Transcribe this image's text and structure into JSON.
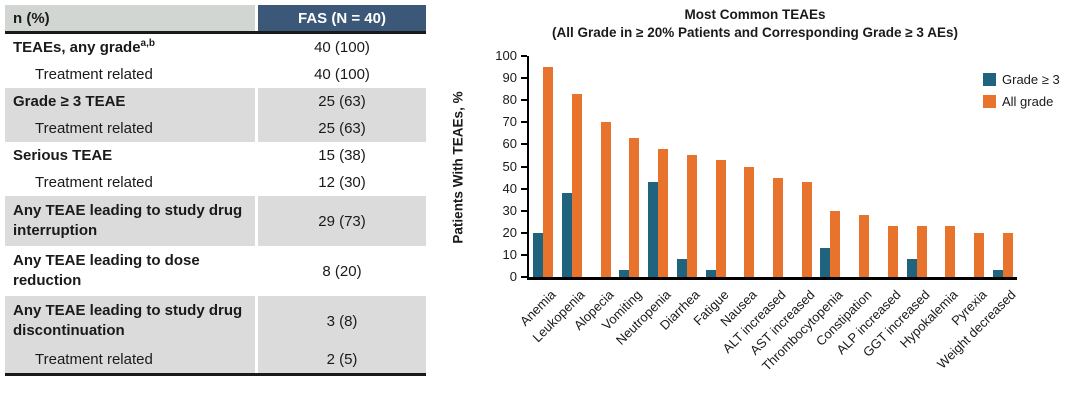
{
  "table": {
    "header": {
      "col1": "n (%)",
      "col2": "FAS (N = 40)"
    },
    "rows": [
      {
        "label": "TEAEs, any grade",
        "sup": "a,b",
        "value": "40 (100)",
        "bold": true,
        "indent": false,
        "shaded": false,
        "twoline": false
      },
      {
        "label": "Treatment related",
        "sup": "",
        "value": "40 (100)",
        "bold": false,
        "indent": true,
        "shaded": false,
        "twoline": false
      },
      {
        "label": "Grade ≥ 3 TEAE",
        "sup": "",
        "value": "25 (63)",
        "bold": true,
        "indent": false,
        "shaded": true,
        "twoline": false
      },
      {
        "label": "Treatment related",
        "sup": "",
        "value": "25 (63)",
        "bold": false,
        "indent": true,
        "shaded": true,
        "twoline": false
      },
      {
        "label": "Serious TEAE",
        "sup": "",
        "value": "15 (38)",
        "bold": true,
        "indent": false,
        "shaded": false,
        "twoline": false
      },
      {
        "label": "Treatment related",
        "sup": "",
        "value": "12 (30)",
        "bold": false,
        "indent": true,
        "shaded": false,
        "twoline": false
      },
      {
        "label": "Any TEAE leading to study drug interruption",
        "sup": "",
        "value": "29 (73)",
        "bold": true,
        "indent": false,
        "shaded": true,
        "twoline": true
      },
      {
        "label": "Any TEAE leading to dose reduction",
        "sup": "",
        "value": "8 (20)",
        "bold": true,
        "indent": false,
        "shaded": false,
        "twoline": true
      },
      {
        "label": "Any TEAE leading to study drug discontinuation",
        "sup": "",
        "value": "3 (8)",
        "bold": true,
        "indent": false,
        "shaded": true,
        "twoline": true
      },
      {
        "label": "Treatment related",
        "sup": "",
        "value": "2 (5)",
        "bold": false,
        "indent": true,
        "shaded": true,
        "twoline": false
      }
    ]
  },
  "chart_data": {
    "type": "bar",
    "title": "Most Common TEAEs",
    "subtitle": "(All Grade in ≥ 20% Patients and Corresponding Grade ≥ 3 AEs)",
    "ylabel": "Patients With TEAEs, %",
    "xlabel": "",
    "ylim": [
      0,
      100
    ],
    "yticks": [
      0,
      10,
      20,
      30,
      40,
      50,
      60,
      70,
      80,
      90,
      100
    ],
    "grid": false,
    "legend_position": "upper right",
    "categories": [
      "Anemia",
      "Leukopenia",
      "Alopecia",
      "Vomiting",
      "Neutropenia",
      "Diarrhea",
      "Fatigue",
      "Nausea",
      "ALT increased",
      "AST increased",
      "Thrombocytopenia",
      "Constipation",
      "ALP increased",
      "GGT increased",
      "Hypokalemia",
      "Pyrexia",
      "Weight decreased"
    ],
    "series": [
      {
        "name": "Grade ≥ 3",
        "color": "#1F637E",
        "values": [
          20,
          38,
          0,
          3,
          43,
          8,
          3,
          0,
          0,
          0,
          13,
          0,
          0,
          8,
          0,
          0,
          3
        ]
      },
      {
        "name": "All grade",
        "color": "#E8732D",
        "values": [
          95,
          83,
          70,
          63,
          58,
          55,
          53,
          50,
          45,
          43,
          30,
          28,
          23,
          23,
          23,
          20,
          20
        ]
      }
    ]
  },
  "colors": {
    "header_navy": "#3B5878",
    "header_gray": "#D2D6D2",
    "row_stripe_gray": "#DBDBDB",
    "grade3_blue": "#1F637E",
    "allgrade_orange": "#E8732D"
  }
}
